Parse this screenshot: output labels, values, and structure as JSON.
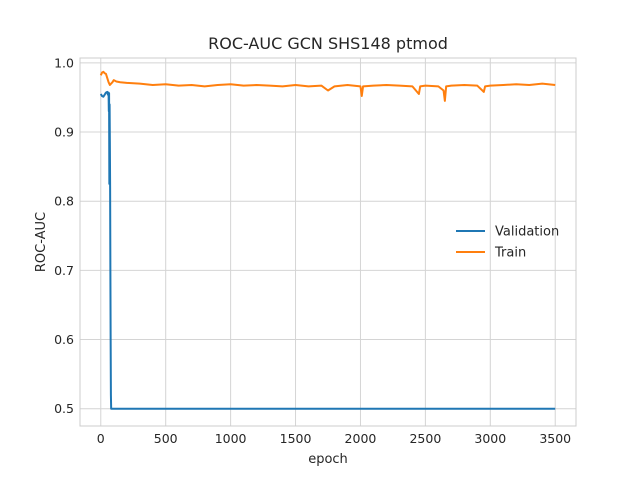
{
  "chart_data": {
    "type": "line",
    "title": "ROC-AUC GCN SHS148 ptmod",
    "xlabel": "epoch",
    "ylabel": "ROC-AUC",
    "xlim": [
      -160,
      3660
    ],
    "ylim": [
      0.475,
      1.007
    ],
    "x_ticks": [
      0,
      500,
      1000,
      1500,
      2000,
      2500,
      3000,
      3500
    ],
    "y_ticks": [
      0.5,
      0.6,
      0.7,
      0.8,
      0.9,
      1.0
    ],
    "x_tick_labels": [
      "0",
      "500",
      "1000",
      "1500",
      "2000",
      "2500",
      "3000",
      "3500"
    ],
    "y_tick_labels": [
      "0.5",
      "0.6",
      "0.7",
      "0.8",
      "0.9",
      "1.0"
    ],
    "grid": true,
    "legend_position": "center-right",
    "series": [
      {
        "name": "Validation",
        "color": "#1f77b4",
        "x": [
          0,
          10,
          20,
          30,
          40,
          50,
          55,
          60,
          62,
          64,
          66,
          68,
          70,
          72,
          74,
          76,
          78,
          80,
          82,
          85,
          90,
          100,
          200,
          500,
          1000,
          1500,
          2000,
          2500,
          3000,
          3500
        ],
        "y": [
          0.955,
          0.952,
          0.951,
          0.954,
          0.957,
          0.958,
          0.954,
          0.957,
          0.93,
          0.956,
          0.825,
          0.94,
          0.885,
          0.82,
          0.7,
          0.6,
          0.52,
          0.5,
          0.5,
          0.5,
          0.5,
          0.5,
          0.5,
          0.5,
          0.5,
          0.5,
          0.5,
          0.5,
          0.5,
          0.5
        ]
      },
      {
        "name": "Train",
        "color": "#ff7f0e",
        "x": [
          0,
          10,
          20,
          30,
          40,
          50,
          60,
          70,
          80,
          90,
          100,
          120,
          150,
          200,
          300,
          400,
          500,
          600,
          700,
          800,
          900,
          1000,
          1100,
          1200,
          1300,
          1400,
          1500,
          1600,
          1700,
          1750,
          1800,
          1900,
          2000,
          2010,
          2020,
          2100,
          2200,
          2300,
          2400,
          2450,
          2460,
          2500,
          2600,
          2640,
          2650,
          2660,
          2700,
          2800,
          2900,
          2950,
          2960,
          3000,
          3100,
          3200,
          3300,
          3400,
          3500
        ],
        "y": [
          0.982,
          0.986,
          0.987,
          0.985,
          0.984,
          0.978,
          0.972,
          0.968,
          0.97,
          0.972,
          0.975,
          0.973,
          0.972,
          0.971,
          0.97,
          0.968,
          0.969,
          0.967,
          0.968,
          0.966,
          0.968,
          0.969,
          0.967,
          0.968,
          0.967,
          0.966,
          0.968,
          0.966,
          0.967,
          0.96,
          0.966,
          0.968,
          0.966,
          0.952,
          0.966,
          0.967,
          0.968,
          0.967,
          0.966,
          0.955,
          0.966,
          0.967,
          0.966,
          0.96,
          0.945,
          0.966,
          0.967,
          0.968,
          0.967,
          0.958,
          0.966,
          0.967,
          0.968,
          0.969,
          0.968,
          0.97,
          0.968
        ]
      }
    ]
  }
}
